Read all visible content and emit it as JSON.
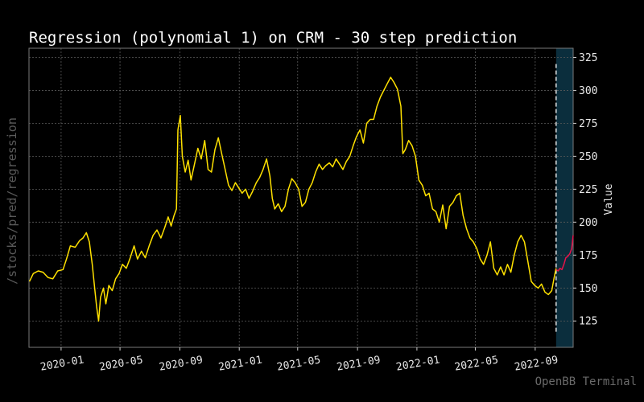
{
  "chart_data": {
    "type": "line",
    "title": "Regression (polynomial 1) on CRM - 30 step prediction",
    "ylabel": "Value",
    "xlabel": "",
    "ylim": [
      105,
      332
    ],
    "xlim": [
      "2019-10-27",
      "2022-11-18"
    ],
    "yticks": [
      125,
      150,
      175,
      200,
      225,
      250,
      275,
      300,
      325
    ],
    "xticks": [
      "2020-01",
      "2020-05",
      "2020-09",
      "2021-01",
      "2021-05",
      "2021-09",
      "2022-01",
      "2022-05",
      "2022-09"
    ],
    "grid": true,
    "prediction_start": "2022-10-14",
    "colors": {
      "history": "#ffe100",
      "prediction": "#e8134a",
      "shade": "#0b2e3d",
      "divider": "#ffffff",
      "grid": "#5a5a5a"
    },
    "series": [
      {
        "role": "history",
        "points": [
          [
            "2019-10-28",
            155
          ],
          [
            "2019-11-05",
            161
          ],
          [
            "2019-11-15",
            163
          ],
          [
            "2019-11-25",
            162
          ],
          [
            "2019-12-05",
            158
          ],
          [
            "2019-12-15",
            157
          ],
          [
            "2019-12-25",
            163
          ],
          [
            "2020-01-05",
            164
          ],
          [
            "2020-01-12",
            172
          ],
          [
            "2020-01-20",
            182
          ],
          [
            "2020-01-30",
            181
          ],
          [
            "2020-02-08",
            186
          ],
          [
            "2020-02-15",
            188
          ],
          [
            "2020-02-22",
            192
          ],
          [
            "2020-02-28",
            185
          ],
          [
            "2020-03-05",
            168
          ],
          [
            "2020-03-10",
            150
          ],
          [
            "2020-03-14",
            136
          ],
          [
            "2020-03-18",
            125
          ],
          [
            "2020-03-22",
            143
          ],
          [
            "2020-03-28",
            150
          ],
          [
            "2020-04-02",
            138
          ],
          [
            "2020-04-08",
            152
          ],
          [
            "2020-04-15",
            148
          ],
          [
            "2020-04-22",
            157
          ],
          [
            "2020-04-29",
            161
          ],
          [
            "2020-05-06",
            168
          ],
          [
            "2020-05-14",
            165
          ],
          [
            "2020-05-22",
            173
          ],
          [
            "2020-05-30",
            182
          ],
          [
            "2020-06-06",
            172
          ],
          [
            "2020-06-14",
            178
          ],
          [
            "2020-06-22",
            173
          ],
          [
            "2020-06-30",
            182
          ],
          [
            "2020-07-08",
            190
          ],
          [
            "2020-07-16",
            194
          ],
          [
            "2020-07-24",
            188
          ],
          [
            "2020-08-01",
            196
          ],
          [
            "2020-08-08",
            204
          ],
          [
            "2020-08-14",
            197
          ],
          [
            "2020-08-20",
            205
          ],
          [
            "2020-08-25",
            210
          ],
          [
            "2020-08-28",
            270
          ],
          [
            "2020-09-02",
            281
          ],
          [
            "2020-09-06",
            250
          ],
          [
            "2020-09-12",
            238
          ],
          [
            "2020-09-18",
            247
          ],
          [
            "2020-09-24",
            232
          ],
          [
            "2020-10-01",
            244
          ],
          [
            "2020-10-08",
            256
          ],
          [
            "2020-10-15",
            248
          ],
          [
            "2020-10-22",
            262
          ],
          [
            "2020-10-29",
            240
          ],
          [
            "2020-11-05",
            238
          ],
          [
            "2020-11-12",
            255
          ],
          [
            "2020-11-19",
            264
          ],
          [
            "2020-11-26",
            252
          ],
          [
            "2020-12-03",
            240
          ],
          [
            "2020-12-10",
            228
          ],
          [
            "2020-12-17",
            224
          ],
          [
            "2020-12-24",
            230
          ],
          [
            "2020-12-31",
            226
          ],
          [
            "2021-01-07",
            222
          ],
          [
            "2021-01-14",
            225
          ],
          [
            "2021-01-21",
            218
          ],
          [
            "2021-01-28",
            223
          ],
          [
            "2021-02-05",
            230
          ],
          [
            "2021-02-12",
            234
          ],
          [
            "2021-02-19",
            240
          ],
          [
            "2021-02-26",
            248
          ],
          [
            "2021-03-05",
            235
          ],
          [
            "2021-03-10",
            218
          ],
          [
            "2021-03-15",
            210
          ],
          [
            "2021-03-22",
            214
          ],
          [
            "2021-03-29",
            208
          ],
          [
            "2021-04-05",
            212
          ],
          [
            "2021-04-12",
            225
          ],
          [
            "2021-04-19",
            233
          ],
          [
            "2021-04-26",
            230
          ],
          [
            "2021-05-03",
            225
          ],
          [
            "2021-05-10",
            212
          ],
          [
            "2021-05-17",
            215
          ],
          [
            "2021-05-24",
            225
          ],
          [
            "2021-05-31",
            230
          ],
          [
            "2021-06-07",
            238
          ],
          [
            "2021-06-14",
            244
          ],
          [
            "2021-06-21",
            240
          ],
          [
            "2021-06-28",
            243
          ],
          [
            "2021-07-05",
            245
          ],
          [
            "2021-07-12",
            242
          ],
          [
            "2021-07-19",
            248
          ],
          [
            "2021-07-26",
            244
          ],
          [
            "2021-08-02",
            240
          ],
          [
            "2021-08-09",
            246
          ],
          [
            "2021-08-16",
            250
          ],
          [
            "2021-08-23",
            258
          ],
          [
            "2021-08-30",
            265
          ],
          [
            "2021-09-06",
            270
          ],
          [
            "2021-09-13",
            260
          ],
          [
            "2021-09-20",
            275
          ],
          [
            "2021-09-27",
            278
          ],
          [
            "2021-10-04",
            278
          ],
          [
            "2021-10-11",
            288
          ],
          [
            "2021-10-18",
            295
          ],
          [
            "2021-10-25",
            300
          ],
          [
            "2021-11-01",
            305
          ],
          [
            "2021-11-08",
            310
          ],
          [
            "2021-11-15",
            306
          ],
          [
            "2021-11-22",
            301
          ],
          [
            "2021-11-29",
            288
          ],
          [
            "2021-12-03",
            252
          ],
          [
            "2021-12-08",
            255
          ],
          [
            "2021-12-15",
            262
          ],
          [
            "2021-12-22",
            258
          ],
          [
            "2021-12-29",
            250
          ],
          [
            "2022-01-05",
            232
          ],
          [
            "2022-01-12",
            228
          ],
          [
            "2022-01-19",
            220
          ],
          [
            "2022-01-26",
            222
          ],
          [
            "2022-02-02",
            210
          ],
          [
            "2022-02-09",
            208
          ],
          [
            "2022-02-16",
            200
          ],
          [
            "2022-02-23",
            213
          ],
          [
            "2022-03-02",
            195
          ],
          [
            "2022-03-09",
            212
          ],
          [
            "2022-03-16",
            215
          ],
          [
            "2022-03-23",
            220
          ],
          [
            "2022-03-30",
            222
          ],
          [
            "2022-04-06",
            205
          ],
          [
            "2022-04-13",
            195
          ],
          [
            "2022-04-20",
            188
          ],
          [
            "2022-04-27",
            185
          ],
          [
            "2022-05-04",
            180
          ],
          [
            "2022-05-11",
            172
          ],
          [
            "2022-05-18",
            168
          ],
          [
            "2022-05-25",
            175
          ],
          [
            "2022-06-01",
            185
          ],
          [
            "2022-06-08",
            165
          ],
          [
            "2022-06-15",
            160
          ],
          [
            "2022-06-22",
            166
          ],
          [
            "2022-06-29",
            160
          ],
          [
            "2022-07-06",
            168
          ],
          [
            "2022-07-13",
            162
          ],
          [
            "2022-07-20",
            175
          ],
          [
            "2022-07-27",
            185
          ],
          [
            "2022-08-03",
            190
          ],
          [
            "2022-08-10",
            185
          ],
          [
            "2022-08-17",
            170
          ],
          [
            "2022-08-24",
            155
          ],
          [
            "2022-08-31",
            152
          ],
          [
            "2022-09-07",
            150
          ],
          [
            "2022-09-14",
            153
          ],
          [
            "2022-09-21",
            147
          ],
          [
            "2022-09-28",
            145
          ],
          [
            "2022-10-05",
            148
          ],
          [
            "2022-10-10",
            158
          ],
          [
            "2022-10-14",
            165
          ]
        ]
      },
      {
        "role": "prediction",
        "points": [
          [
            "2022-10-14",
            164
          ],
          [
            "2022-10-18",
            163
          ],
          [
            "2022-10-22",
            165
          ],
          [
            "2022-10-26",
            164
          ],
          [
            "2022-10-30",
            168
          ],
          [
            "2022-11-03",
            173
          ],
          [
            "2022-11-07",
            174
          ],
          [
            "2022-11-11",
            176
          ],
          [
            "2022-11-15",
            180
          ],
          [
            "2022-11-18",
            190
          ]
        ]
      }
    ]
  },
  "side_label": "/stocks/pred/regression",
  "watermark": "OpenBB Terminal"
}
